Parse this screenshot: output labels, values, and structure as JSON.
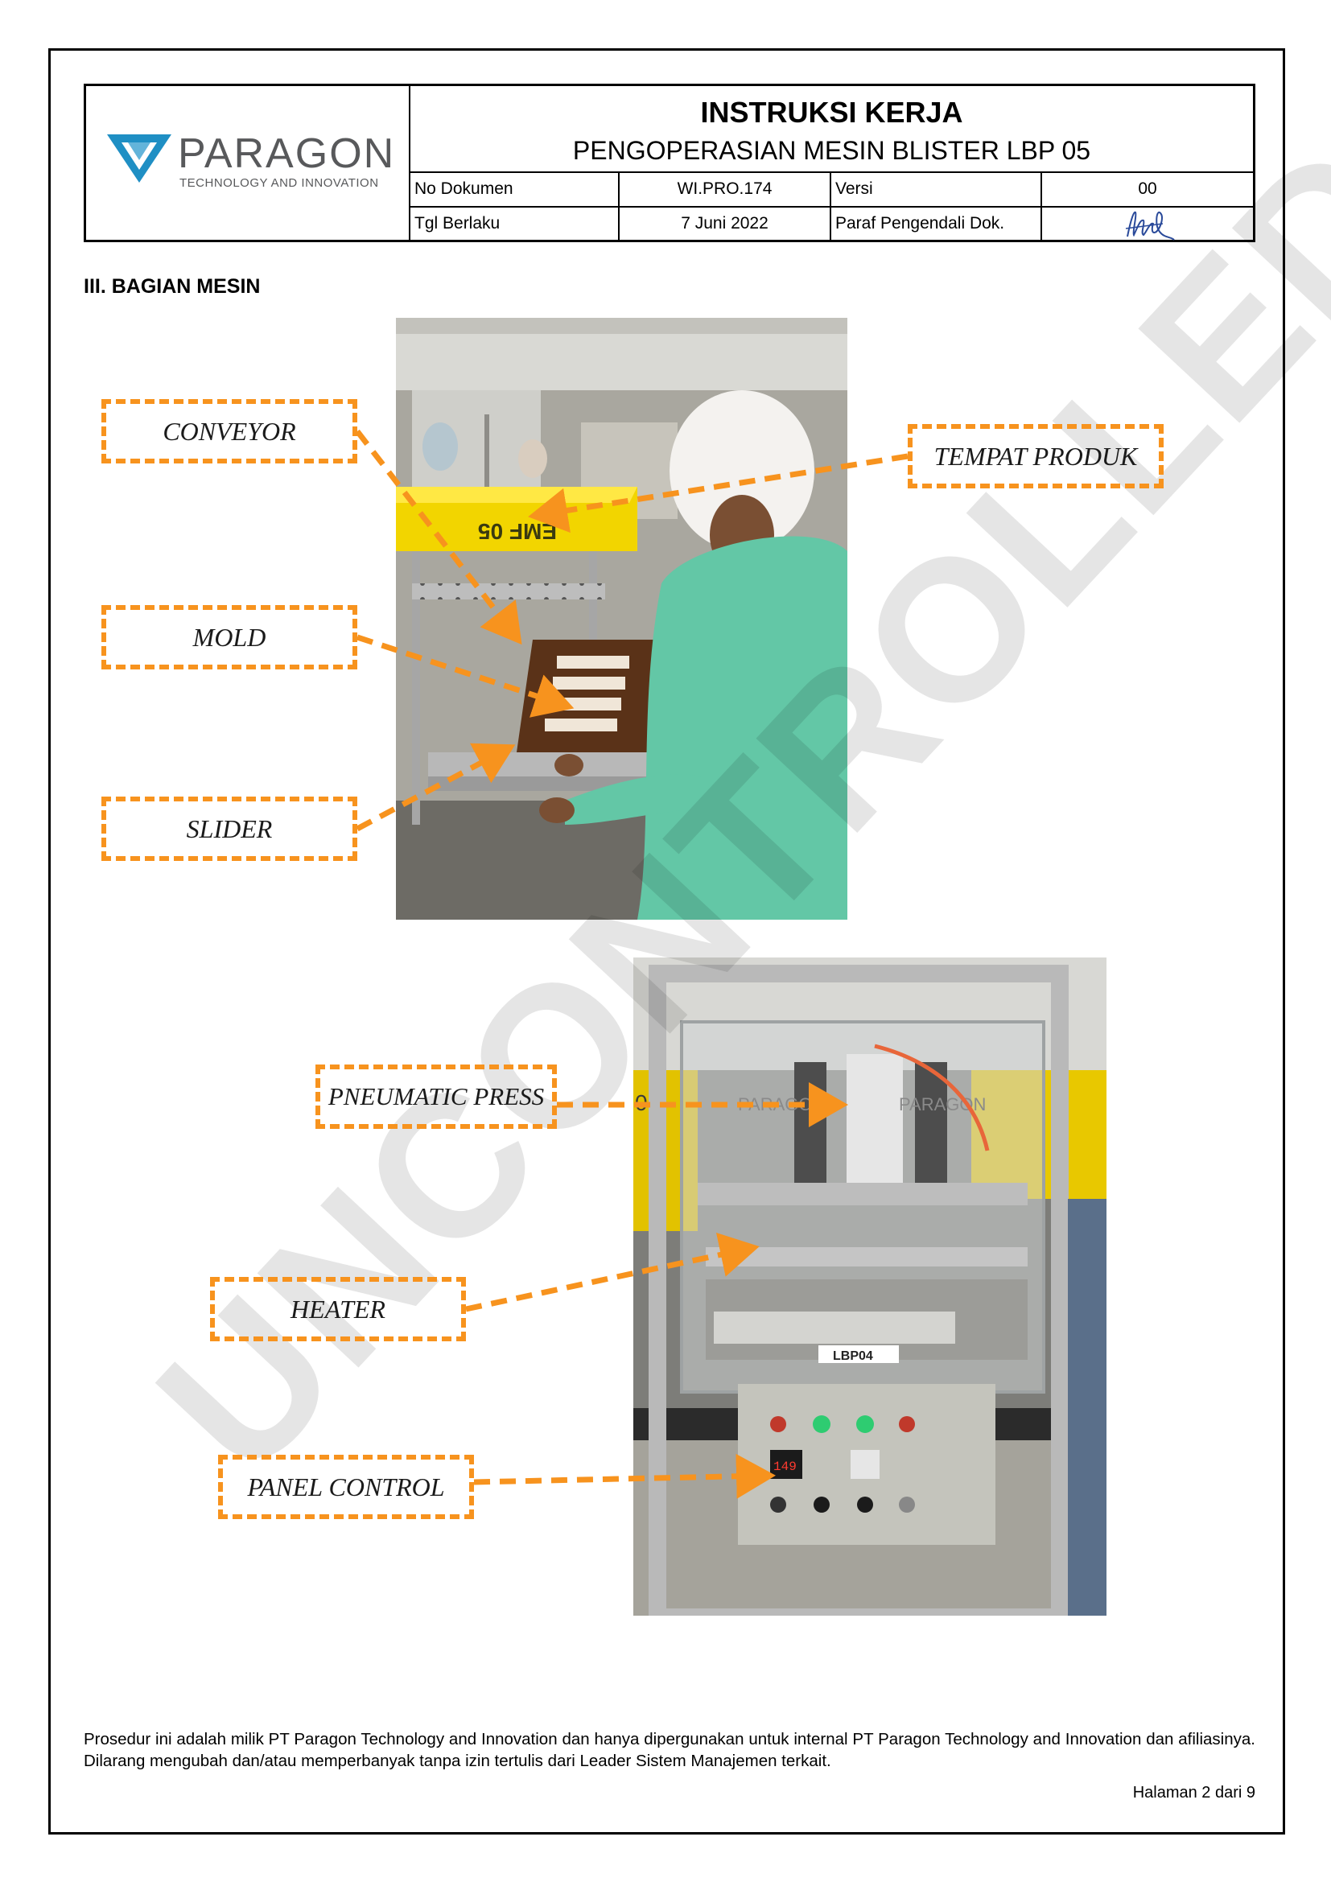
{
  "header": {
    "brand_name": "PARAGON",
    "brand_tagline": "TECHNOLOGY AND INNOVATION",
    "title": "INSTRUKSI KERJA",
    "subtitle": "PENGOPERASIAN MESIN BLISTER LBP 05",
    "doc_no_label": "No Dokumen",
    "doc_no_value": "WI.PRO.174",
    "version_label": "Versi",
    "version_value": "00",
    "effective_label": "Tgl Berlaku",
    "effective_value": "7 Juni 2022",
    "control_label": "Paraf Pengendali Dok."
  },
  "section_title": "III. BAGIAN MESIN",
  "photo1_labels": {
    "conveyor": "CONVEYOR",
    "tempat_produk": "TEMPAT PRODUK",
    "mold": "MOLD",
    "slider": "SLIDER",
    "tray_text": "EMF 05"
  },
  "photo2_labels": {
    "pneumatic_press": "PNEUMATIC PRESS",
    "heater": "HEATER",
    "panel_control": "PANEL CONTROL",
    "machine_tag": "LBP04",
    "press_brand_left": "PARAGON",
    "press_brand_right": "PARAGON",
    "side_text": "05",
    "display_value": "149"
  },
  "watermark": "UNCONTROLLED",
  "footer": {
    "text": "Prosedur ini adalah milik PT Paragon Technology and Innovation dan hanya dipergunakan untuk internal PT Paragon Technology and Innovation dan afiliasinya. Dilarang mengubah dan/atau memperbanyak tanpa izin tertulis dari Leader Sistem Manajemen terkait.",
    "page": "Halaman 2 dari 9"
  },
  "colors": {
    "callout_orange": "#f7931e",
    "brand_blue": "#1f8fc4",
    "tray_yellow": "#f5d400",
    "coat_green": "#62c7a6"
  }
}
